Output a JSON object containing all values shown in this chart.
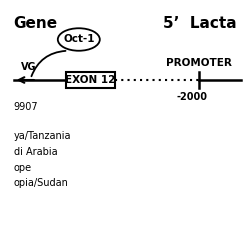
{
  "title_left": "Gene",
  "title_right": "5’  Lacta",
  "oct1_label": "Oct-1",
  "vg_label": "VG",
  "exon_label": "EXON 12",
  "promoter_label": "PROMOTER",
  "position_label": "-2000",
  "bottom_texts": [
    "9907",
    "",
    "ya/Tanzania",
    "di Arabia",
    "ope",
    "opia/Sudan"
  ],
  "bg_color": "#ffffff",
  "line_color": "#000000",
  "text_color": "#000000",
  "fig_width": 2.5,
  "fig_height": 2.5,
  "dpi": 100
}
